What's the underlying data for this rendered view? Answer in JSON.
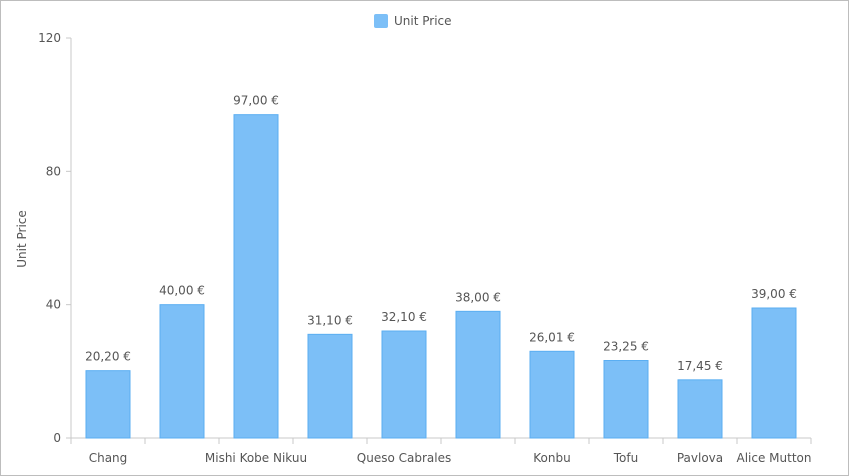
{
  "chart_data": {
    "type": "bar",
    "legend": {
      "label": "Unit Price",
      "position": "top-center"
    },
    "series": [
      {
        "name": "Unit Price",
        "color": "#7cbff7",
        "values": [
          20.2,
          40.0,
          97.0,
          31.1,
          32.1,
          38.0,
          26.01,
          23.25,
          17.45,
          39.0
        ]
      }
    ],
    "categories": [
      "Chang",
      "",
      "Mishi Kobe Nikuu",
      "",
      "Queso Cabrales",
      "",
      "Konbu",
      "Tofu",
      "Pavlova",
      "Alice Mutton"
    ],
    "data_labels": [
      "20,20 €",
      "40,00 €",
      "97,00 €",
      "31,10 €",
      "32,10 €",
      "38,00 €",
      "26,01 €",
      "23,25 €",
      "17,45 €",
      "39,00 €"
    ],
    "ylabel": "Unit Price",
    "xlabel": "",
    "ylim": [
      0,
      120
    ],
    "yticks": [
      0,
      40,
      80,
      120
    ],
    "grid": false
  }
}
